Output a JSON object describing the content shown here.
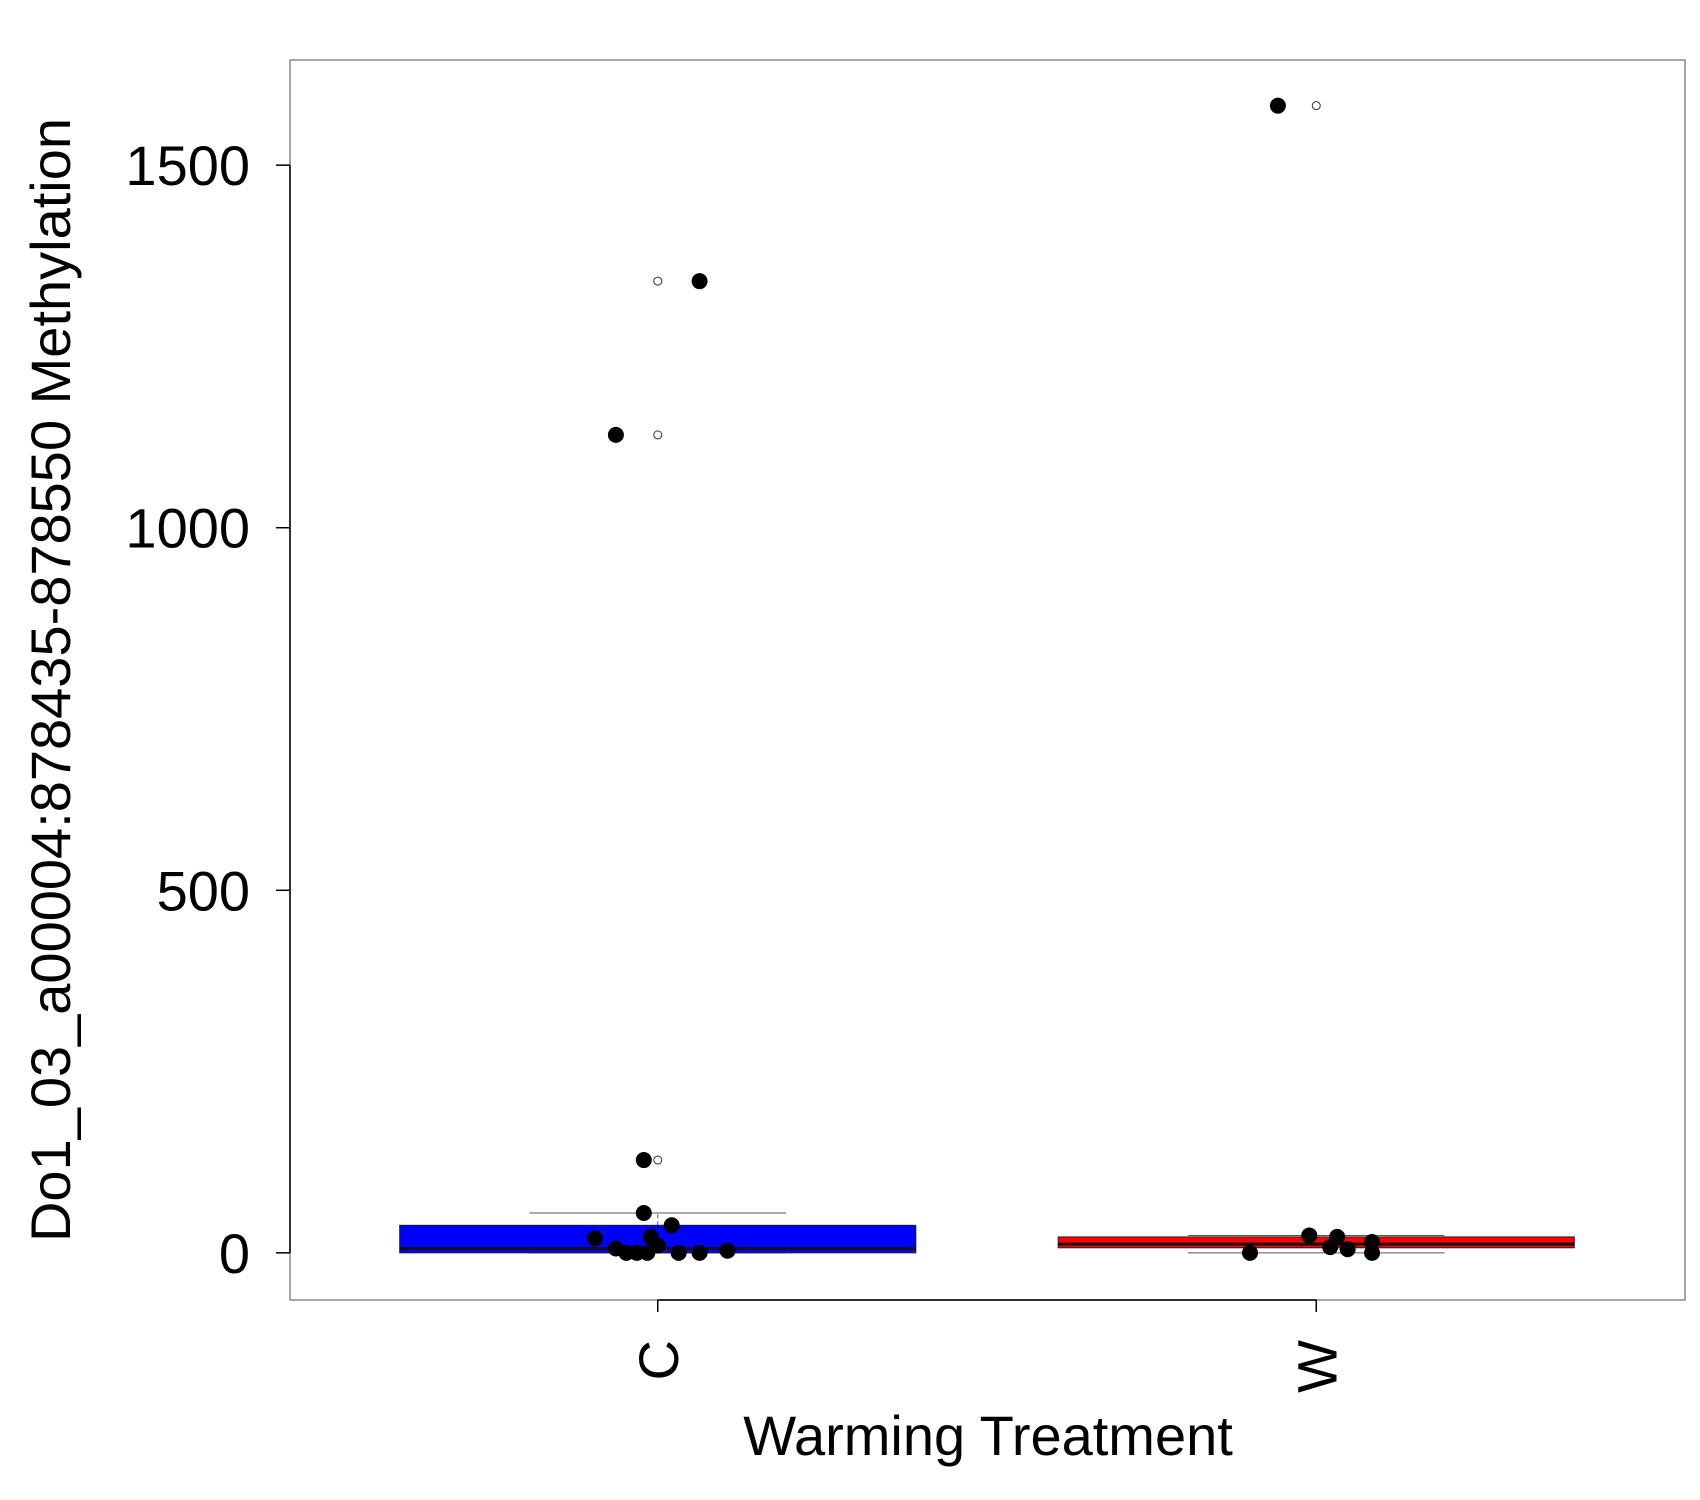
{
  "chart_data": {
    "type": "boxplot",
    "xlabel": "Warming Treatment",
    "ylabel": "Do1_03_a00004:878435-878550 Methylation",
    "ylim": [
      -65,
      1645
    ],
    "yticks": [
      0,
      500,
      1000,
      1500
    ],
    "categories": [
      "C",
      "W"
    ],
    "colors": {
      "C": "#0000ff",
      "W": "#ff0000"
    },
    "boxes": [
      {
        "category": "C",
        "q1": 0,
        "median": 6,
        "q3": 38,
        "whisker_low": 0,
        "whisker_high": 55,
        "outliers": [
          128,
          1128,
          1340
        ]
      },
      {
        "category": "W",
        "q1": 7,
        "median": 12,
        "q3": 22,
        "whisker_low": 0,
        "whisker_high": 24,
        "outliers": [
          1582
        ]
      }
    ],
    "points": [
      {
        "category": "C",
        "offset": -0.06,
        "y": 1128
      },
      {
        "category": "C",
        "offset": 0.06,
        "y": 1340
      },
      {
        "category": "C",
        "offset": -0.02,
        "y": 128
      },
      {
        "category": "C",
        "offset": -0.02,
        "y": 55
      },
      {
        "category": "C",
        "offset": 0.02,
        "y": 38
      },
      {
        "category": "C",
        "offset": -0.09,
        "y": 20
      },
      {
        "category": "C",
        "offset": -0.01,
        "y": 22
      },
      {
        "category": "C",
        "offset": -0.06,
        "y": 6
      },
      {
        "category": "C",
        "offset": -0.045,
        "y": 0
      },
      {
        "category": "C",
        "offset": -0.03,
        "y": 0
      },
      {
        "category": "C",
        "offset": -0.015,
        "y": 0
      },
      {
        "category": "C",
        "offset": 0.0,
        "y": 10
      },
      {
        "category": "C",
        "offset": 0.03,
        "y": 0
      },
      {
        "category": "C",
        "offset": 0.06,
        "y": 0
      },
      {
        "category": "C",
        "offset": 0.1,
        "y": 3
      },
      {
        "category": "W",
        "offset": -0.055,
        "y": 1582
      },
      {
        "category": "W",
        "offset": -0.01,
        "y": 24
      },
      {
        "category": "W",
        "offset": 0.03,
        "y": 22
      },
      {
        "category": "W",
        "offset": 0.02,
        "y": 8
      },
      {
        "category": "W",
        "offset": 0.045,
        "y": 5
      },
      {
        "category": "W",
        "offset": 0.08,
        "y": 15
      },
      {
        "category": "W",
        "offset": 0.08,
        "y": 0
      },
      {
        "category": "W",
        "offset": -0.095,
        "y": 0
      }
    ]
  }
}
